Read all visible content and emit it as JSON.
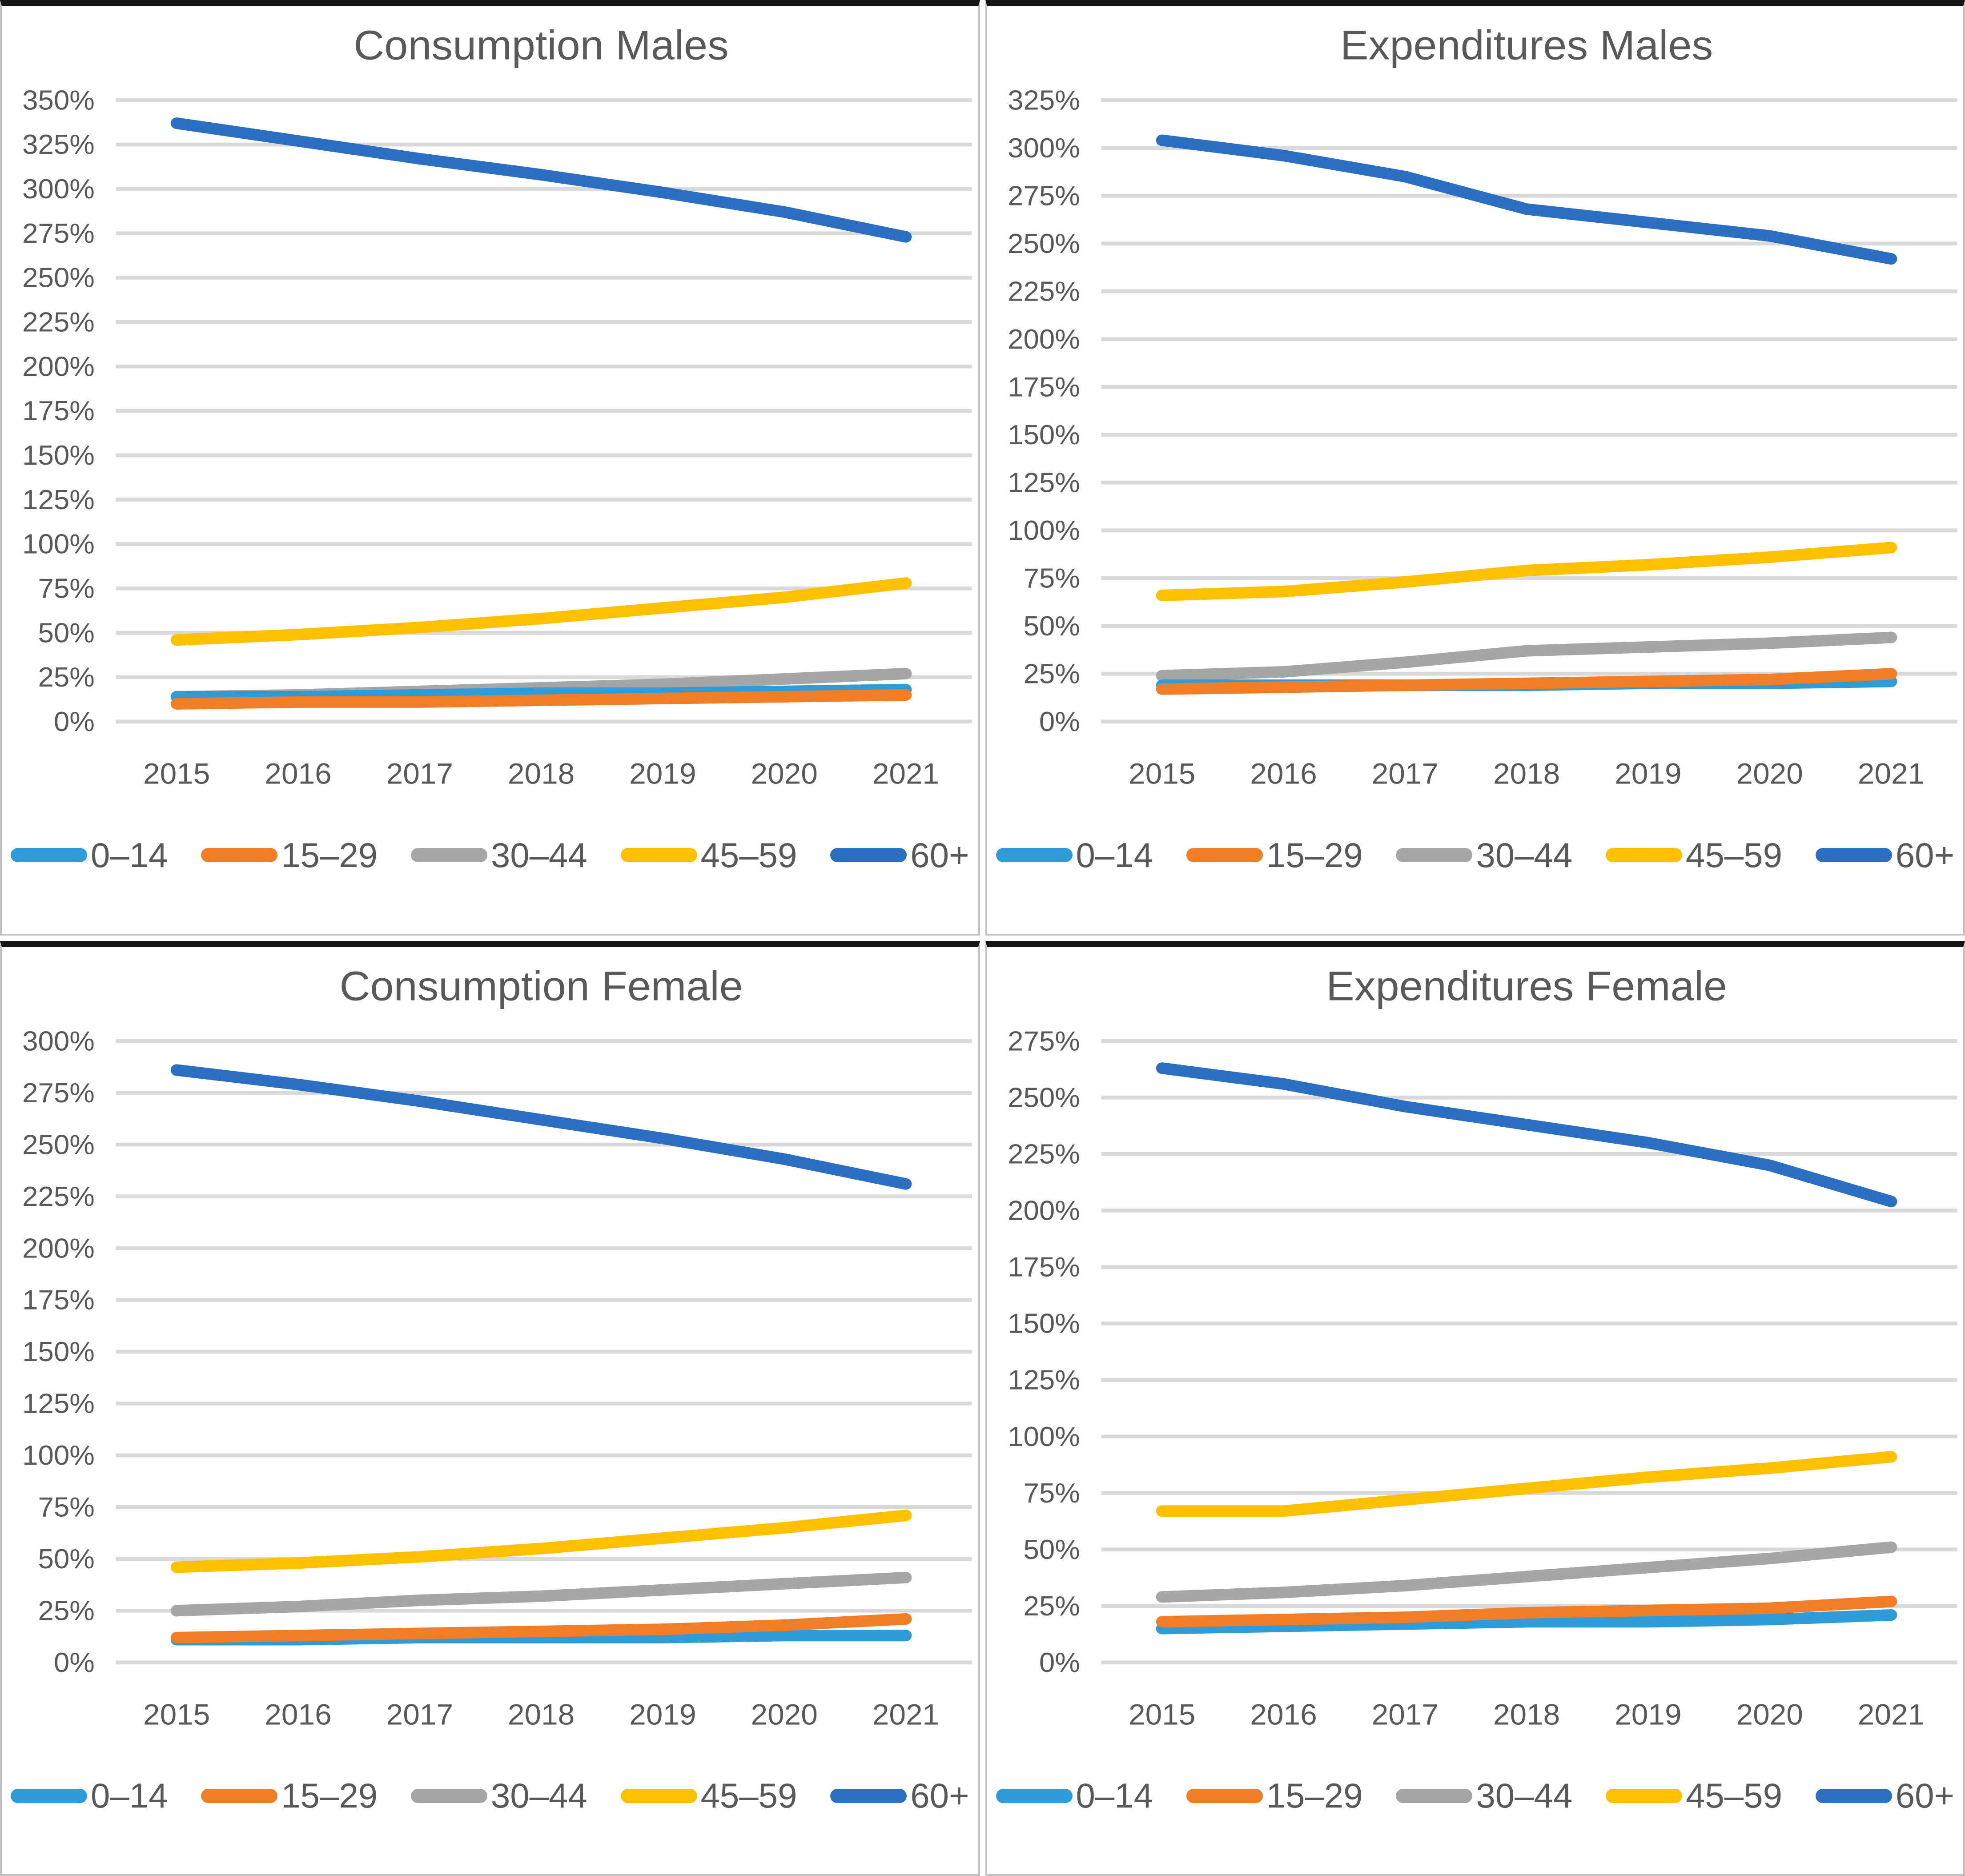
{
  "style": {
    "text_color": "#595959",
    "gridline_color": "#D9D9D9",
    "panel_border_color": "#C2C2C2",
    "separator_color": "#141414",
    "background": "#FFFFFF",
    "series_colors": {
      "age_0_14": "#2E9CD9",
      "age_15_29": "#F07E27",
      "age_30_44": "#A6A6A6",
      "age_45_59": "#FFC000",
      "age_60_plus": "#2A6FC2"
    }
  },
  "chart_data": [
    {
      "type": "line",
      "title": "Consumption Males",
      "x": [
        2015,
        2016,
        2017,
        2018,
        2019,
        2020,
        2021
      ],
      "ylim": [
        0,
        350
      ],
      "ytick_step": 25,
      "ytick_format": "percent",
      "grid": true,
      "legend_position": "bottom",
      "series": [
        {
          "name": "0–14",
          "color": "#2E9CD9",
          "values": [
            14,
            14,
            15,
            16,
            16,
            17,
            18
          ]
        },
        {
          "name": "15–29",
          "color": "#F07E27",
          "values": [
            10,
            11,
            11,
            12,
            13,
            14,
            15
          ]
        },
        {
          "name": "30–44",
          "color": "#A6A6A6",
          "values": [
            14,
            15,
            17,
            19,
            21,
            24,
            27
          ]
        },
        {
          "name": "45–59",
          "color": "#FFC000",
          "values": [
            46,
            49,
            53,
            58,
            64,
            70,
            78
          ]
        },
        {
          "name": "60+",
          "color": "#2A6FC2",
          "values": [
            337,
            327,
            317,
            308,
            298,
            287,
            273
          ]
        }
      ]
    },
    {
      "type": "line",
      "title": "Expenditures Males",
      "x": [
        2015,
        2016,
        2017,
        2018,
        2019,
        2020,
        2021
      ],
      "ylim": [
        0,
        325
      ],
      "ytick_step": 25,
      "ytick_format": "percent",
      "grid": true,
      "legend_position": "bottom",
      "series": [
        {
          "name": "0–14",
          "color": "#2E9CD9",
          "values": [
            19,
            19,
            19,
            19,
            20,
            20,
            21
          ]
        },
        {
          "name": "15–29",
          "color": "#F07E27",
          "values": [
            17,
            18,
            19,
            20,
            21,
            22,
            25
          ]
        },
        {
          "name": "30–44",
          "color": "#A6A6A6",
          "values": [
            24,
            26,
            31,
            37,
            39,
            41,
            44
          ]
        },
        {
          "name": "45–59",
          "color": "#FFC000",
          "values": [
            66,
            68,
            73,
            79,
            82,
            86,
            91
          ]
        },
        {
          "name": "60+",
          "color": "#2A6FC2",
          "values": [
            304,
            296,
            285,
            268,
            261,
            254,
            242
          ]
        }
      ]
    },
    {
      "type": "line",
      "title": "Consumption Female",
      "x": [
        2015,
        2016,
        2017,
        2018,
        2019,
        2020,
        2021
      ],
      "ylim": [
        0,
        300
      ],
      "ytick_step": 25,
      "ytick_format": "percent",
      "grid": true,
      "legend_position": "bottom",
      "series": [
        {
          "name": "0–14",
          "color": "#2E9CD9",
          "values": [
            11,
            11,
            12,
            12,
            12,
            13,
            13
          ]
        },
        {
          "name": "15–29",
          "color": "#F07E27",
          "values": [
            12,
            13,
            14,
            15,
            16,
            18,
            21
          ]
        },
        {
          "name": "30–44",
          "color": "#A6A6A6",
          "values": [
            25,
            27,
            30,
            32,
            35,
            38,
            41
          ]
        },
        {
          "name": "45–59",
          "color": "#FFC000",
          "values": [
            46,
            48,
            51,
            55,
            60,
            65,
            71
          ]
        },
        {
          "name": "60+",
          "color": "#2A6FC2",
          "values": [
            286,
            279,
            271,
            262,
            253,
            243,
            231
          ]
        }
      ]
    },
    {
      "type": "line",
      "title": "Expenditures Female",
      "x": [
        2015,
        2016,
        2017,
        2018,
        2019,
        2020,
        2021
      ],
      "ylim": [
        0,
        275
      ],
      "ytick_step": 25,
      "ytick_format": "percent",
      "grid": true,
      "legend_position": "bottom",
      "series": [
        {
          "name": "0–14",
          "color": "#2E9CD9",
          "values": [
            15,
            16,
            17,
            18,
            18,
            19,
            21
          ]
        },
        {
          "name": "15–29",
          "color": "#F07E27",
          "values": [
            18,
            19,
            20,
            22,
            23,
            24,
            27
          ]
        },
        {
          "name": "30–44",
          "color": "#A6A6A6",
          "values": [
            29,
            31,
            34,
            38,
            42,
            46,
            51
          ]
        },
        {
          "name": "45–59",
          "color": "#FFC000",
          "values": [
            67,
            67,
            72,
            77,
            82,
            86,
            91
          ]
        },
        {
          "name": "60+",
          "color": "#2A6FC2",
          "values": [
            263,
            256,
            246,
            238,
            230,
            220,
            204
          ]
        }
      ]
    }
  ]
}
